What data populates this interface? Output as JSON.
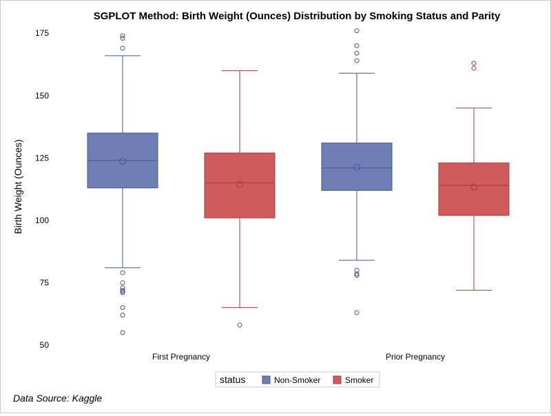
{
  "chart_data": {
    "type": "boxplot",
    "title": "SGPLOT Method: Birth Weight (Ounces) Distribution by Smoking Status and Parity",
    "xlabel": "",
    "ylabel": "Birth Weight (Ounces)",
    "ylim": [
      50,
      177
    ],
    "yticks": [
      50,
      75,
      100,
      125,
      150,
      175
    ],
    "categories": [
      "First Pregnancy",
      "Prior Pregnancy"
    ],
    "legend": {
      "title": "status",
      "position": "bottom-center"
    },
    "footnote": "Data Source: Kaggle",
    "series": [
      {
        "name": "Non-Smoker",
        "color": "#6f7eb5",
        "edge": "#45558f",
        "boxes": [
          {
            "category": "First Pregnancy",
            "whisker_low": 81,
            "q1": 113,
            "median": 124,
            "mean": 123.7,
            "q3": 135,
            "whisker_high": 166,
            "outliers": [
              55,
              62,
              65,
              71,
              71.5,
              72,
              73,
              75,
              79,
              169,
              173,
              174
            ]
          },
          {
            "category": "Prior Pregnancy",
            "whisker_low": 84,
            "q1": 112,
            "median": 121,
            "mean": 121.2,
            "q3": 131,
            "whisker_high": 159,
            "outliers": [
              63,
              78,
              78.5,
              80,
              164,
              167,
              170,
              176
            ]
          }
        ]
      },
      {
        "name": "Smoker",
        "color": "#d05b5b",
        "edge": "#a83a3a",
        "boxes": [
          {
            "category": "First Pregnancy",
            "whisker_low": 65,
            "q1": 101,
            "median": 115,
            "mean": 114.3,
            "q3": 127,
            "whisker_high": 160,
            "outliers": [
              58
            ]
          },
          {
            "category": "Prior Pregnancy",
            "whisker_low": 72,
            "q1": 102,
            "median": 114,
            "mean": 113.3,
            "q3": 123,
            "whisker_high": 145,
            "outliers": [
              161,
              163
            ]
          }
        ]
      }
    ]
  }
}
